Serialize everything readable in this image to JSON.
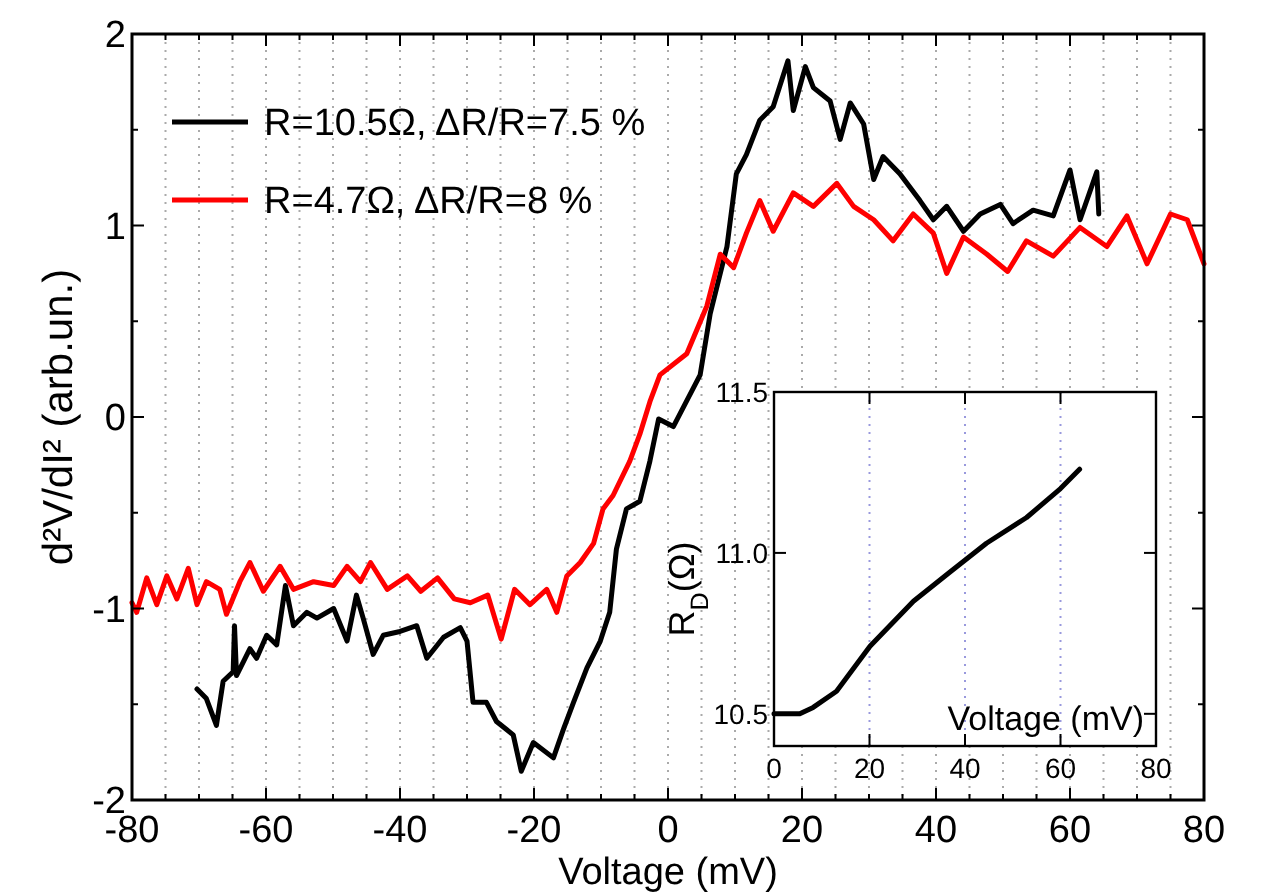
{
  "chart_data": [
    {
      "type": "line",
      "xlabel": "Voltage (mV)",
      "ylabel": "d²V/dI² (arb.un.)",
      "xlim": [
        -80,
        80
      ],
      "ylim": [
        -2,
        2
      ],
      "xticks": [
        -80,
        {
          "value": -75,
          "label": null
        },
        {
          "value": -70,
          "label": null
        },
        {
          "value": -65,
          "label": null
        },
        -60,
        {
          "value": -55,
          "label": null
        },
        {
          "value": -50,
          "label": null
        },
        {
          "value": -45,
          "label": null
        },
        -40,
        {
          "value": -35,
          "label": null
        },
        {
          "value": -30,
          "label": null
        },
        {
          "value": -25,
          "label": null
        },
        -20,
        {
          "value": -15,
          "label": null
        },
        {
          "value": -10,
          "label": null
        },
        {
          "value": -5,
          "label": null
        },
        0,
        {
          "value": 5,
          "label": null
        },
        {
          "value": 10,
          "label": null
        },
        {
          "value": 15,
          "label": null
        },
        20,
        {
          "value": 25,
          "label": null
        },
        {
          "value": 30,
          "label": null
        },
        {
          "value": 35,
          "label": null
        },
        40,
        {
          "value": 45,
          "label": null
        },
        {
          "value": 50,
          "label": null
        },
        {
          "value": 55,
          "label": null
        },
        60,
        {
          "value": 65,
          "label": null
        },
        {
          "value": 70,
          "label": null
        },
        {
          "value": 75,
          "label": null
        },
        80
      ],
      "yticks": [
        -2,
        {
          "value": -1.5,
          "label": null
        },
        -1,
        {
          "value": -0.5,
          "label": null
        },
        0,
        {
          "value": 0.5,
          "label": null
        },
        1,
        {
          "value": 1.5,
          "label": null
        },
        2
      ],
      "grid": "x",
      "legend": "top left",
      "line_style": "solid",
      "series": [
        {
          "name": "R=10.5Ω, ΔR/R=7.5 %",
          "color": "#000000",
          "x": [
            -70.3,
            -68.9,
            -67.4,
            -66.4,
            -64.9,
            -64.7,
            -64.4,
            -62.4,
            -61.4,
            -59.9,
            -58.4,
            -57.1,
            -55.9,
            -53.9,
            -52.4,
            -49.9,
            -47.9,
            -46.5,
            -45.5,
            -44,
            -42.5,
            -40,
            -37.5,
            -36,
            -33.5,
            -31,
            -30,
            -29.1,
            -27.1,
            -25.6,
            -23.1,
            -21.9,
            -20.1,
            -17.1,
            -15.6,
            -14.1,
            -12.1,
            -10.1,
            -8.7,
            -7.7,
            -6.2,
            -4.2,
            -2.7,
            -1.4,
            0.8,
            4.8,
            6.3,
            8.8,
            10.2,
            11.7,
            13.7,
            15.7,
            17.9,
            18.7,
            20.5,
            21.7,
            24.2,
            25.7,
            27.2,
            29.2,
            30.7,
            32.1,
            34.6,
            37.6,
            39.6,
            41.6,
            44.1,
            46.6,
            49.6,
            51.5,
            54.5,
            57.5,
            60,
            61.5,
            64,
            64.3
          ],
          "values": [
            -1.42,
            -1.47,
            -1.61,
            -1.38,
            -1.33,
            -1.09,
            -1.35,
            -1.21,
            -1.26,
            -1.14,
            -1.19,
            -0.88,
            -1.09,
            -1.02,
            -1.05,
            -1,
            -1.17,
            -0.93,
            -1.05,
            -1.24,
            -1.14,
            -1.12,
            -1.09,
            -1.26,
            -1.15,
            -1.1,
            -1.17,
            -1.49,
            -1.49,
            -1.59,
            -1.66,
            -1.85,
            -1.7,
            -1.78,
            -1.63,
            -1.49,
            -1.31,
            -1.17,
            -1.02,
            -0.69,
            -0.48,
            -0.44,
            -0.23,
            -0.01,
            -0.05,
            0.22,
            0.54,
            0.89,
            1.27,
            1.37,
            1.55,
            1.62,
            1.86,
            1.6,
            1.83,
            1.72,
            1.65,
            1.45,
            1.64,
            1.53,
            1.24,
            1.36,
            1.27,
            1.13,
            1.03,
            1.1,
            0.97,
            1.06,
            1.11,
            1.01,
            1.08,
            1.05,
            1.29,
            1.03,
            1.28,
            1.06
          ]
        },
        {
          "name": "R=4.7Ω, ΔR/R=8 %",
          "color": "#ff0000",
          "x": [
            -80,
            -79.3,
            -77.8,
            -76.3,
            -74.8,
            -73.3,
            -71.6,
            -70.3,
            -68.9,
            -66.9,
            -65.9,
            -63.9,
            -62.4,
            -60.4,
            -57.9,
            -55.9,
            -52.9,
            -49.9,
            -47.9,
            -45.9,
            -44.4,
            -41.9,
            -38.9,
            -36.9,
            -34.4,
            -31.9,
            -29.5,
            -26.9,
            -24.9,
            -22.9,
            -20.6,
            -18.1,
            -16.6,
            -15.1,
            -13.1,
            -11.1,
            -9.7,
            -8.2,
            -5.7,
            -4.2,
            -2.7,
            -1.2,
            2.8,
            5.8,
            7.8,
            9.8,
            11.7,
            13.7,
            15.7,
            18.7,
            21.7,
            25.2,
            27.7,
            30.7,
            33.6,
            36.6,
            39.6,
            41.6,
            44.1,
            47.6,
            50.7,
            53.5,
            57.5,
            61.5,
            65.5,
            68.5,
            71.5,
            75,
            77.5,
            80
          ],
          "values": [
            -0.97,
            -1.02,
            -0.84,
            -0.98,
            -0.83,
            -0.95,
            -0.79,
            -0.98,
            -0.86,
            -0.9,
            -1.03,
            -0.86,
            -0.76,
            -0.91,
            -0.78,
            -0.9,
            -0.86,
            -0.88,
            -0.78,
            -0.86,
            -0.76,
            -0.9,
            -0.83,
            -0.91,
            -0.84,
            -0.95,
            -0.97,
            -0.93,
            -1.16,
            -0.9,
            -0.98,
            -0.9,
            -1.02,
            -0.83,
            -0.76,
            -0.66,
            -0.48,
            -0.41,
            -0.23,
            -0.09,
            0.08,
            0.22,
            0.33,
            0.58,
            0.85,
            0.78,
            0.96,
            1.13,
            0.97,
            1.17,
            1.1,
            1.22,
            1.1,
            1.03,
            0.92,
            1.06,
            0.96,
            0.75,
            0.94,
            0.85,
            0.76,
            0.92,
            0.84,
            0.99,
            0.89,
            1.05,
            0.8,
            1.06,
            1.03,
            0.8
          ]
        }
      ]
    },
    {
      "type": "line",
      "xlabel": "Voltage (mV)",
      "ylabel": "R$_{D}$(Ω)",
      "xlim": [
        0,
        80
      ],
      "ylim": [
        10.4,
        11.5
      ],
      "xticks": [
        0,
        20,
        40,
        60,
        80
      ],
      "yticks": [
        10.5,
        {
          "value": 11,
          "label": "11.0"
        },
        11.5
      ],
      "grid": "x",
      "line_style": "solid",
      "series": [
        {
          "color": "#000000",
          "x": [
            0,
            5.4,
            8.2,
            13.1,
            20.1,
            29.2,
            36.8,
            44.5,
            52.9,
            60,
            64
          ],
          "values": [
            10.5,
            10.5,
            10.52,
            10.57,
            10.71,
            10.85,
            10.94,
            11.03,
            11.11,
            11.2,
            11.26
          ]
        }
      ]
    }
  ]
}
